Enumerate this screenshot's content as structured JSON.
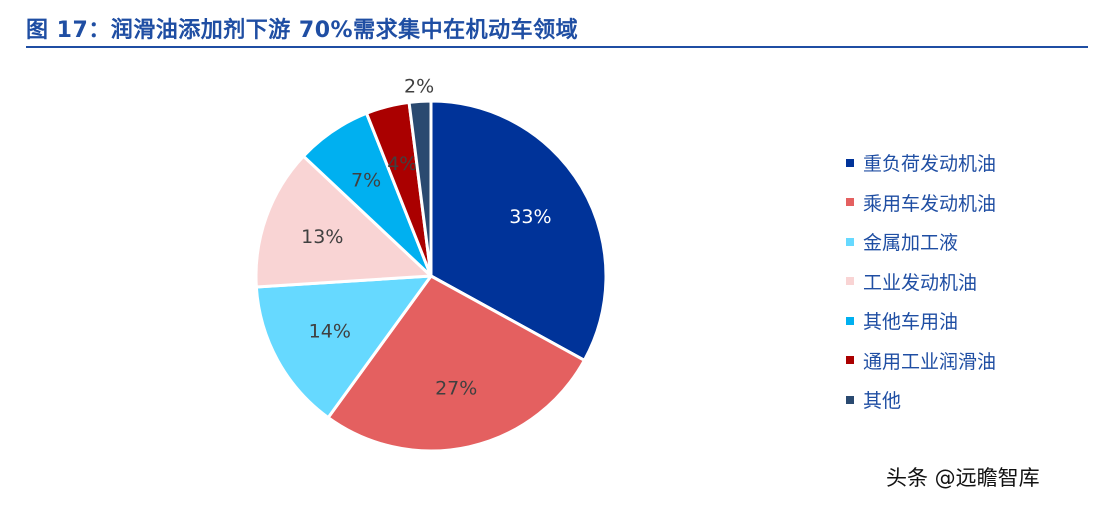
{
  "title": "图 17：润滑油添加剂下游 70%需求集中在机动车领域",
  "watermark": "头条 @远瞻智库",
  "chart_data": {
    "type": "pie",
    "title": "",
    "legend_position": "right",
    "slices": [
      {
        "name": "重负荷发动机油",
        "value": 33,
        "label": "33%",
        "color": "#003399",
        "label_color": "#ffffff"
      },
      {
        "name": "乘用车发动机油",
        "value": 27,
        "label": "27%",
        "color": "#e46060",
        "label_color": "#404040"
      },
      {
        "name": "金属加工液",
        "value": 14,
        "label": "14%",
        "color": "#66d9ff",
        "label_color": "#404040"
      },
      {
        "name": "工业发动机油",
        "value": 13,
        "label": "13%",
        "color": "#f9d4d4",
        "label_color": "#404040"
      },
      {
        "name": "其他车用油",
        "value": 7,
        "label": "7%",
        "color": "#00b0f0",
        "label_color": "#404040"
      },
      {
        "name": "通用工业润滑油",
        "value": 4,
        "label": "4%",
        "color": "#aa0000",
        "label_color": "#404040"
      },
      {
        "name": "其他",
        "value": 2,
        "label": "2%",
        "color": "#2a4a70",
        "label_color": "#404040"
      }
    ]
  }
}
